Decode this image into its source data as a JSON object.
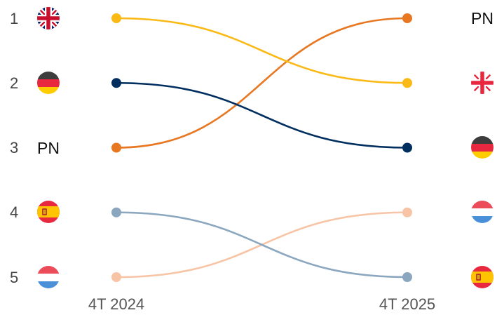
{
  "chart_data": {
    "type": "bump",
    "title": "",
    "x": [
      "4T 2024",
      "4T 2025"
    ],
    "ranks": [
      1,
      2,
      3,
      4,
      5
    ],
    "series": [
      {
        "name": "PN",
        "flag": "code-label",
        "color": "#e87722",
        "ranks": [
          3,
          1
        ]
      },
      {
        "name": "Reino Unido",
        "flag": "uk-flag-icon",
        "color": "#fbb915",
        "ranks": [
          1,
          2
        ]
      },
      {
        "name": "Alemania",
        "flag": "germany-flag-icon",
        "color": "#002f5f",
        "ranks": [
          2,
          3
        ]
      },
      {
        "name": "Luxemburgo",
        "flag": "luxembourg-flag-icon",
        "color": "#f8c4a6",
        "ranks": [
          5,
          4
        ]
      },
      {
        "name": "España",
        "flag": "spain-flag-icon",
        "color": "#8ba6bf",
        "ranks": [
          4,
          5
        ]
      }
    ],
    "code_label": "PN",
    "grid": false,
    "legend": "none"
  }
}
